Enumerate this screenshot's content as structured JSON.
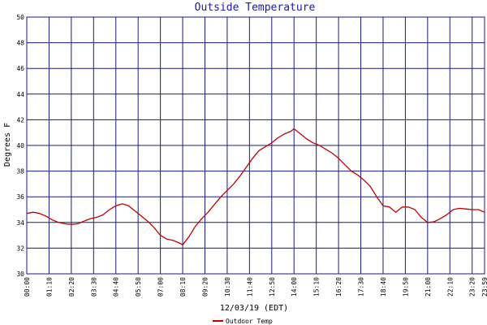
{
  "chart_data": {
    "type": "line",
    "title": "Outside Temperature",
    "xlabel": "12/03/19 (EDT)",
    "ylabel": "Degrees F",
    "ylim": [
      30,
      50
    ],
    "y_ticks": [
      "30",
      "32",
      "34",
      "36",
      "38",
      "40",
      "42",
      "44",
      "46",
      "48",
      "50"
    ],
    "x_ticks": [
      "00:00",
      "01:10",
      "02:20",
      "03:30",
      "04:40",
      "05:50",
      "07:00",
      "08:10",
      "09:20",
      "10:30",
      "11:40",
      "12:50",
      "14:00",
      "15:10",
      "16:20",
      "17:30",
      "18:40",
      "19:50",
      "21:00",
      "22:10",
      "23:20"
    ],
    "x_last_tick": "23:59",
    "grid": true,
    "legend_position": "bottom-left",
    "series": [
      {
        "name": "Outdoor Temp",
        "color": "#c00000",
        "x": [
          "00:00",
          "00:20",
          "00:40",
          "01:00",
          "01:20",
          "01:40",
          "02:00",
          "02:20",
          "02:40",
          "03:00",
          "03:20",
          "03:40",
          "04:00",
          "04:20",
          "04:40",
          "05:00",
          "05:20",
          "05:40",
          "06:00",
          "06:20",
          "06:40",
          "07:00",
          "07:20",
          "07:40",
          "08:00",
          "08:10",
          "08:30",
          "08:50",
          "09:10",
          "09:30",
          "09:50",
          "10:10",
          "10:30",
          "10:50",
          "11:10",
          "11:30",
          "11:50",
          "12:10",
          "12:30",
          "12:50",
          "13:10",
          "13:30",
          "13:50",
          "14:00",
          "14:20",
          "14:40",
          "15:00",
          "15:20",
          "15:40",
          "16:00",
          "16:20",
          "16:40",
          "17:00",
          "17:20",
          "17:40",
          "18:00",
          "18:20",
          "18:40",
          "19:00",
          "19:20",
          "19:40",
          "20:00",
          "20:20",
          "20:40",
          "21:00",
          "21:20",
          "21:40",
          "22:00",
          "22:20",
          "22:40",
          "23:00",
          "23:20",
          "23:40",
          "23:59"
        ],
        "values": [
          34.7,
          34.8,
          34.7,
          34.5,
          34.2,
          34.0,
          33.9,
          33.85,
          33.9,
          34.1,
          34.3,
          34.4,
          34.6,
          35.0,
          35.3,
          35.45,
          35.3,
          34.9,
          34.5,
          34.1,
          33.6,
          33.0,
          32.7,
          32.6,
          32.4,
          32.25,
          32.9,
          33.7,
          34.3,
          34.8,
          35.4,
          36.0,
          36.5,
          37.0,
          37.6,
          38.3,
          39.0,
          39.6,
          39.9,
          40.2,
          40.6,
          40.9,
          41.1,
          41.3,
          40.9,
          40.5,
          40.2,
          40.0,
          39.7,
          39.4,
          39.0,
          38.5,
          38.0,
          37.7,
          37.3,
          36.8,
          36.0,
          35.3,
          35.2,
          34.8,
          35.2,
          35.2,
          35.0,
          34.4,
          34.0,
          34.05,
          34.3,
          34.6,
          35.0,
          35.1,
          35.05,
          35.0,
          35.0,
          34.8
        ]
      }
    ]
  }
}
